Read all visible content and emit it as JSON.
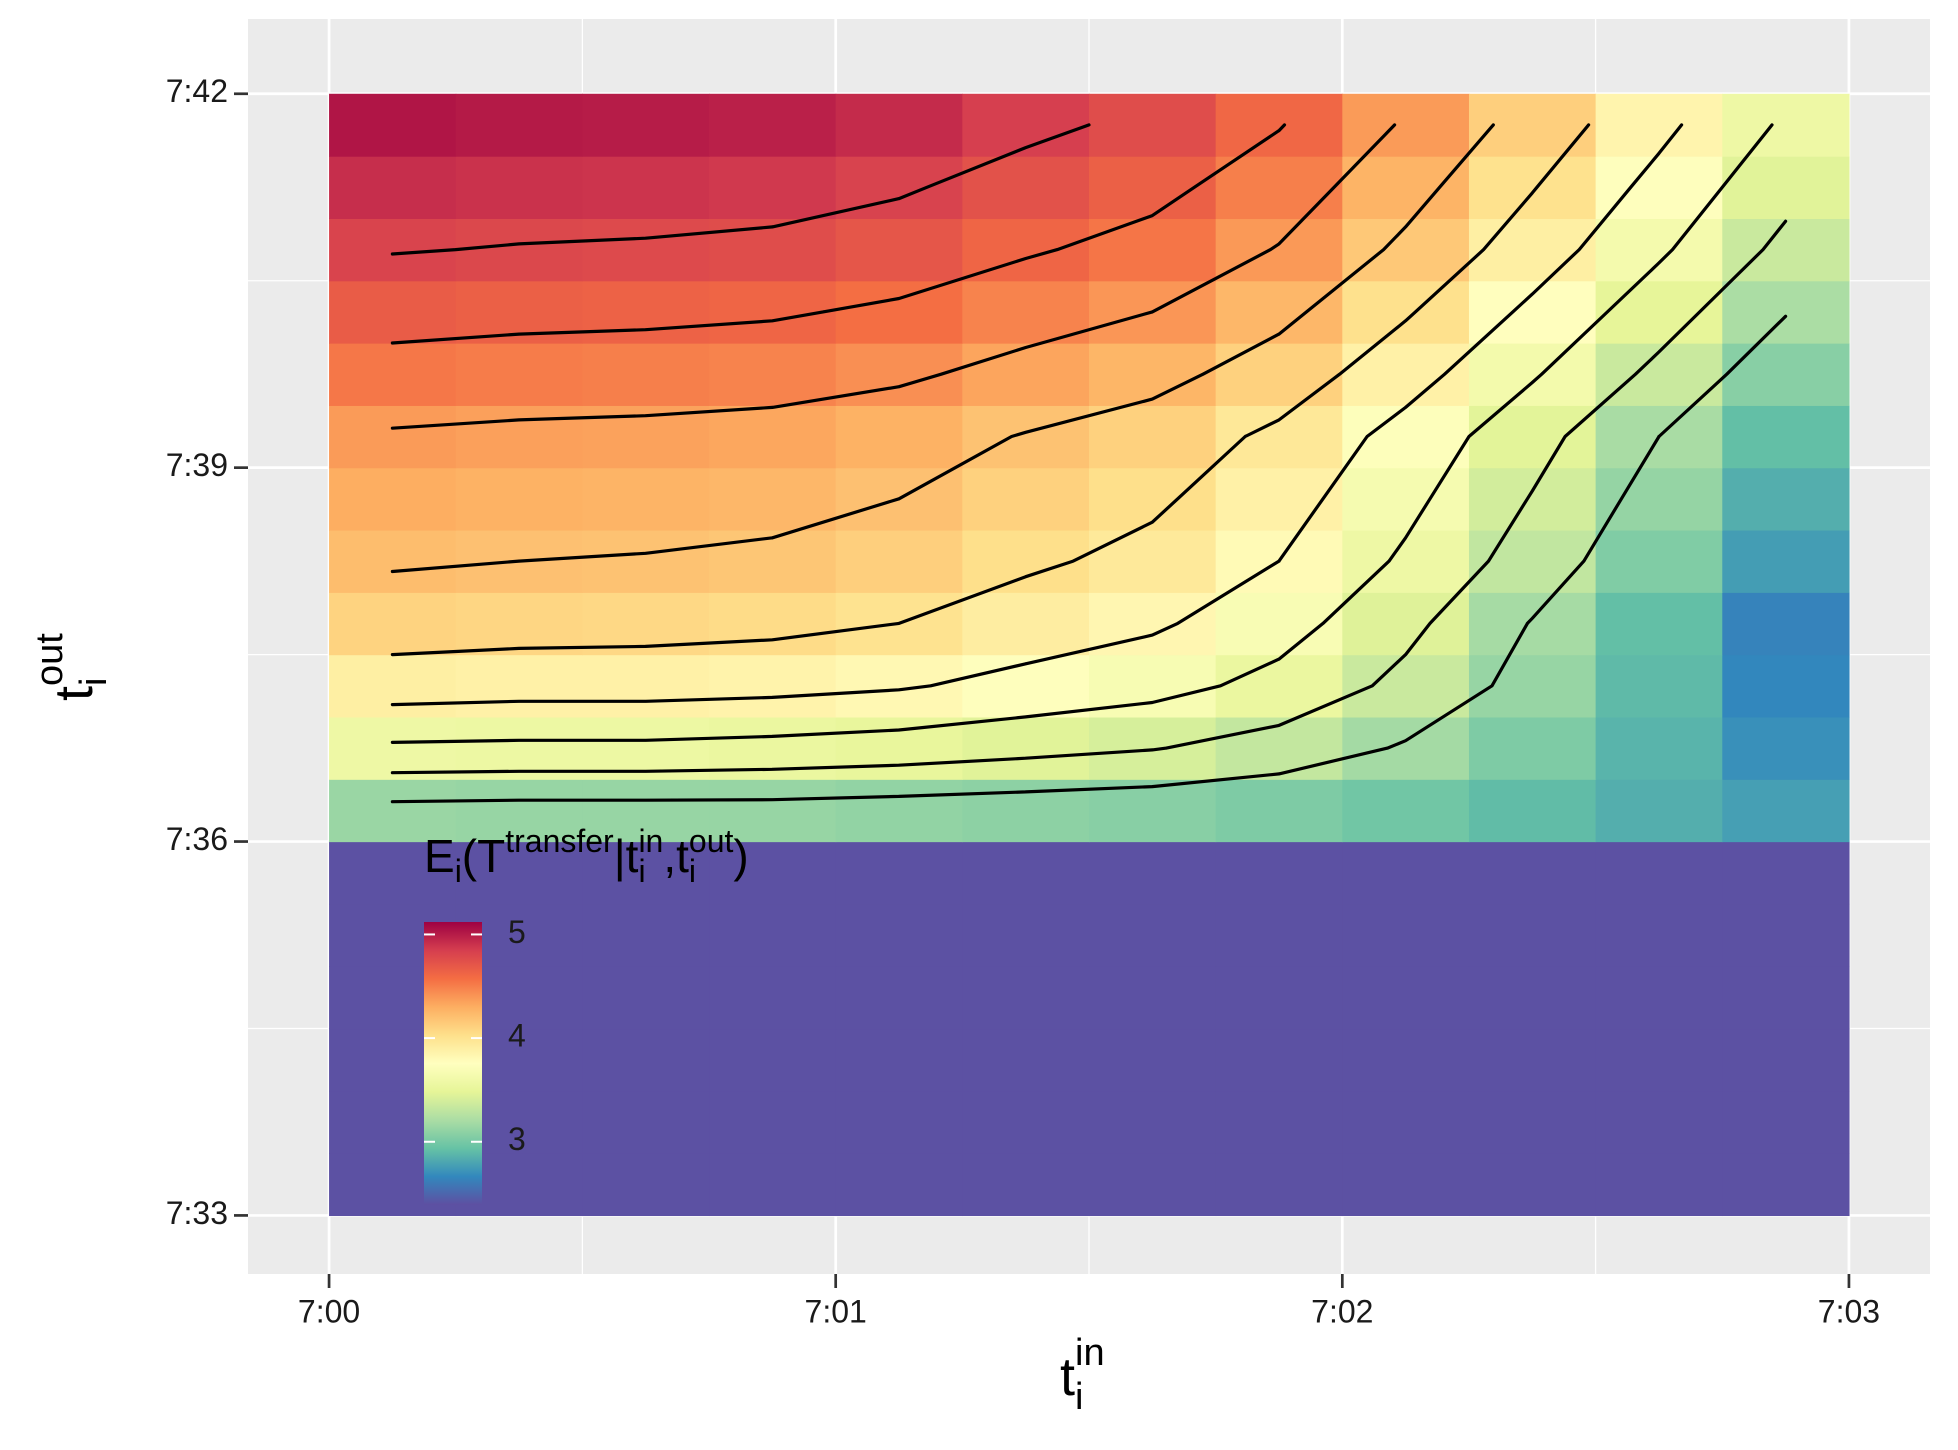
{
  "chart_data": {
    "type": "heatmap",
    "x_label": [
      "t",
      "i",
      "in"
    ],
    "y_label": [
      "t",
      "i",
      "out"
    ],
    "legend_title": [
      "E",
      "i",
      "(T",
      "transfer",
      "|t",
      "i",
      "in",
      ",t",
      "i",
      "out",
      ")"
    ],
    "x": [
      420.125,
      420.375,
      420.625,
      420.875,
      421.125,
      421.375,
      421.625,
      421.875,
      422.125,
      422.375,
      422.625,
      422.875
    ],
    "y": [
      453.25,
      453.75,
      454.25,
      454.75,
      455.25,
      455.75,
      456.25,
      456.75,
      457.25,
      457.75,
      458.25,
      458.75,
      459.25,
      459.75,
      460.25,
      460.75,
      461.25,
      461.75
    ],
    "z": [
      [
        2.4,
        2.4,
        2.4,
        2.4,
        2.4,
        2.4,
        2.4,
        2.4,
        2.4,
        2.4,
        2.4,
        2.4
      ],
      [
        2.4,
        2.4,
        2.4,
        2.4,
        2.4,
        2.4,
        2.4,
        2.4,
        2.4,
        2.4,
        2.4,
        2.4
      ],
      [
        2.4,
        2.4,
        2.4,
        2.4,
        2.4,
        2.4,
        2.4,
        2.4,
        2.4,
        2.4,
        2.4,
        2.4
      ],
      [
        2.4,
        2.4,
        2.4,
        2.4,
        2.4,
        2.4,
        2.4,
        2.4,
        2.4,
        2.4,
        2.4,
        2.4
      ],
      [
        2.4,
        2.4,
        2.4,
        2.4,
        2.4,
        2.4,
        2.4,
        2.4,
        2.4,
        2.4,
        2.4,
        2.4
      ],
      [
        2.4,
        2.4,
        2.4,
        2.4,
        2.4,
        2.4,
        2.4,
        2.4,
        2.4,
        2.4,
        2.4,
        2.4
      ],
      [
        3.14,
        3.13,
        3.13,
        3.13,
        3.11,
        3.09,
        3.07,
        3.03,
        2.98,
        2.91,
        2.84,
        2.77
      ],
      [
        3.57,
        3.56,
        3.56,
        3.54,
        3.51,
        3.46,
        3.41,
        3.32,
        3.18,
        3.03,
        2.87,
        2.7
      ],
      [
        3.9,
        3.88,
        3.88,
        3.86,
        3.82,
        3.74,
        3.67,
        3.54,
        3.35,
        3.13,
        2.9,
        2.66
      ],
      [
        4.1,
        4.08,
        4.07,
        4.05,
        4.0,
        3.91,
        3.83,
        3.68,
        3.45,
        3.19,
        2.92,
        2.64
      ],
      [
        4.22,
        4.2,
        4.19,
        4.17,
        4.12,
        4.03,
        3.95,
        3.8,
        3.57,
        3.31,
        3.04,
        2.76
      ],
      [
        4.3,
        4.28,
        4.27,
        4.25,
        4.2,
        4.11,
        4.03,
        3.88,
        3.65,
        3.39,
        3.12,
        2.84
      ],
      [
        4.38,
        4.36,
        4.35,
        4.33,
        4.28,
        4.19,
        4.11,
        3.96,
        3.73,
        3.47,
        3.2,
        2.92
      ],
      [
        4.53,
        4.51,
        4.5,
        4.48,
        4.43,
        4.34,
        4.26,
        4.11,
        3.88,
        3.62,
        3.35,
        3.07
      ],
      [
        4.67,
        4.65,
        4.64,
        4.62,
        4.57,
        4.48,
        4.4,
        4.25,
        4.02,
        3.76,
        3.49,
        3.21
      ],
      [
        4.81,
        4.79,
        4.78,
        4.76,
        4.71,
        4.62,
        4.54,
        4.39,
        4.16,
        3.9,
        3.63,
        3.35
      ],
      [
        4.92,
        4.9,
        4.89,
        4.87,
        4.82,
        4.73,
        4.65,
        4.5,
        4.27,
        4.01,
        3.74,
        3.46
      ],
      [
        5.03,
        5.01,
        5.0,
        4.98,
        4.93,
        4.84,
        4.76,
        4.61,
        4.38,
        4.12,
        3.85,
        3.57
      ]
    ],
    "xlim": [
      419.84,
      423.16
    ],
    "ylim": [
      452.53,
      462.6
    ],
    "xticks": [
      {
        "value": 420,
        "label": "7:00"
      },
      {
        "value": 421,
        "label": "7:01"
      },
      {
        "value": 422,
        "label": "7:02"
      },
      {
        "value": 423,
        "label": "7:03"
      }
    ],
    "yticks": [
      {
        "value": 453,
        "label": "7:33"
      },
      {
        "value": 456,
        "label": "7:36"
      },
      {
        "value": 459,
        "label": "7:39"
      },
      {
        "value": 462,
        "label": "7:42"
      }
    ],
    "x_minor": [
      420.5,
      421.5,
      422.5
    ],
    "y_minor": [
      454.5,
      457.5,
      460.5
    ],
    "grid": true,
    "colors": [
      "#5E4FA2",
      "#3288BD",
      "#66C2A5",
      "#ABDDA4",
      "#E6F598",
      "#FFFFBF",
      "#FEE08B",
      "#FDAE61",
      "#F46D43",
      "#D53E4F",
      "#9E0142"
    ],
    "colorbar": {
      "lim": [
        2.39,
        5.12
      ],
      "ticks": [
        3,
        4,
        5
      ]
    },
    "contour_levels": [
      3.2,
      3.4,
      3.6,
      3.8,
      4.0,
      4.2,
      4.4,
      4.6,
      4.8
    ],
    "contour_color": "#000000"
  }
}
